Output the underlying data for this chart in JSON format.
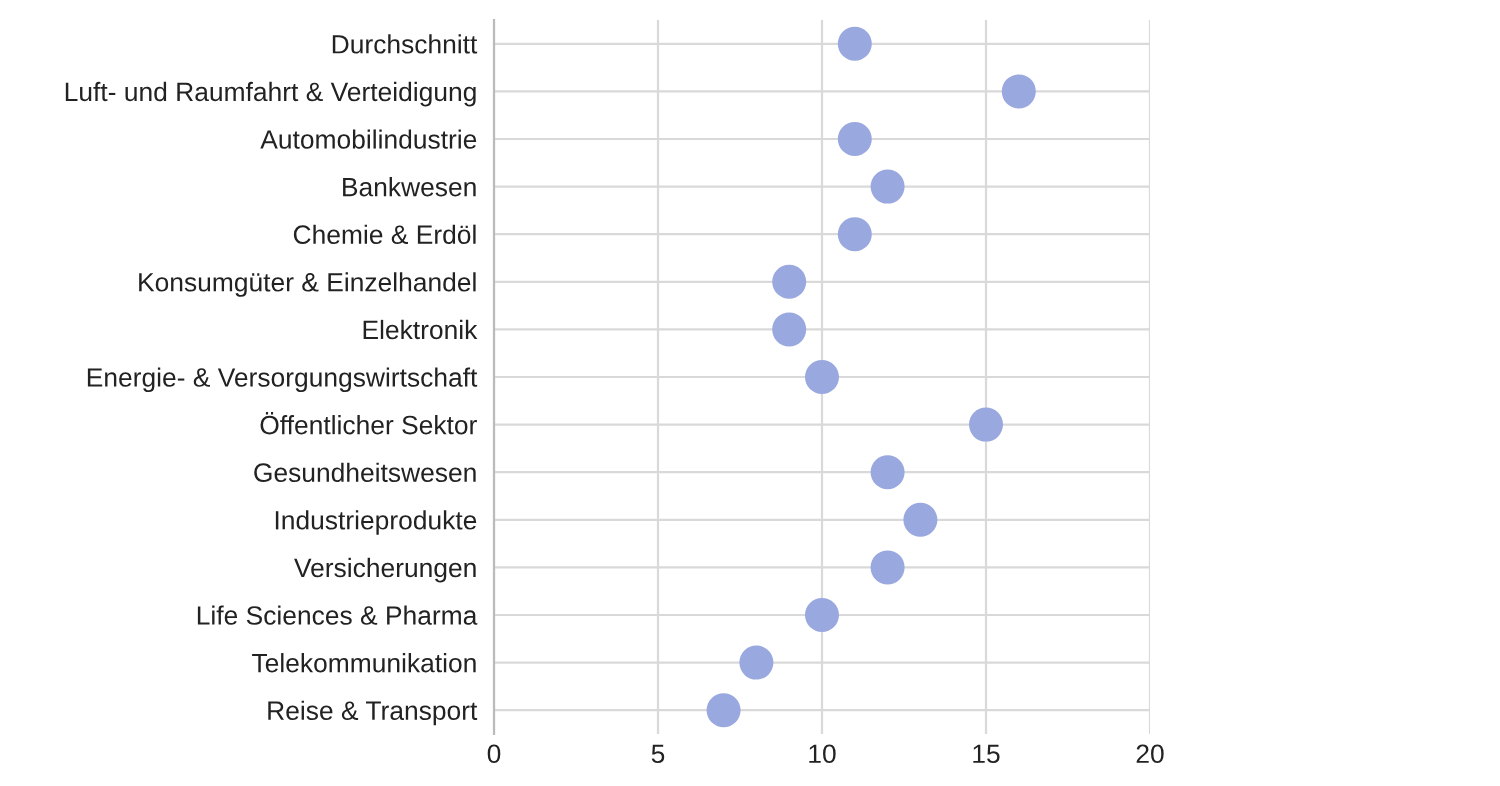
{
  "chart_data": {
    "type": "scatter",
    "orientation": "horizontal",
    "categories": [
      "Durchschnitt",
      "Luft- und Raumfahrt & Verteidigung",
      "Automobilindustrie",
      "Bankwesen",
      "Chemie & Erdöl",
      "Konsumgüter & Einzelhandel",
      "Elektronik",
      "Energie- & Versorgungswirtschaft",
      "Öffentlicher Sektor",
      "Gesundheitswesen",
      "Industrieprodukte",
      "Versicherungen",
      "Life Sciences & Pharma",
      "Telekommunikation",
      "Reise & Transport"
    ],
    "values": [
      11,
      16,
      11,
      12,
      11,
      9,
      9,
      10,
      15,
      12,
      13,
      12,
      10,
      8,
      7
    ],
    "color": "#9aa8e0",
    "xlim": [
      0,
      20
    ],
    "xticks": [
      0,
      5,
      10,
      15,
      20
    ],
    "grid": true,
    "marker": "circle"
  }
}
